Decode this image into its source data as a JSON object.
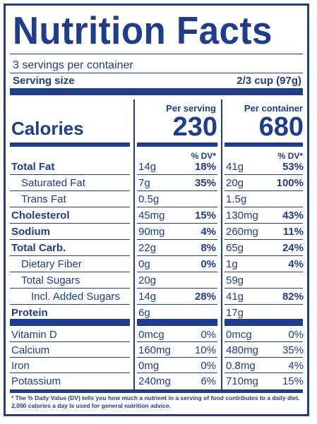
{
  "title": "Nutrition Facts",
  "servings": "3 servings per container",
  "serving_size_label": "Serving size",
  "serving_size_value": "2/3 cup (97g)",
  "per_serving_label": "Per serving",
  "per_container_label": "Per container",
  "calories_label": "Calories",
  "calories_per_serving": "230",
  "calories_per_container": "680",
  "dv_header": "% DV*",
  "rows": [
    {
      "label": "Total Fat",
      "bold": true,
      "indent": 0,
      "s_amt": "14g",
      "s_dv": "18%",
      "c_amt": "41g",
      "c_dv": "53%"
    },
    {
      "label": "Saturated Fat",
      "bold": false,
      "indent": 1,
      "s_amt": "7g",
      "s_dv": "35%",
      "c_amt": "20g",
      "c_dv": "100%"
    },
    {
      "label": "Trans Fat",
      "bold": false,
      "indent": 1,
      "s_amt": "0.5g",
      "s_dv": "",
      "c_amt": "1.5g",
      "c_dv": ""
    },
    {
      "label": "Cholesterol",
      "bold": true,
      "indent": 0,
      "s_amt": "45mg",
      "s_dv": "15%",
      "c_amt": "130mg",
      "c_dv": "43%"
    },
    {
      "label": "Sodium",
      "bold": true,
      "indent": 0,
      "s_amt": "90mg",
      "s_dv": "4%",
      "c_amt": "260mg",
      "c_dv": "11%"
    },
    {
      "label": "Total Carb.",
      "bold": true,
      "indent": 0,
      "s_amt": "22g",
      "s_dv": "8%",
      "c_amt": "65g",
      "c_dv": "24%"
    },
    {
      "label": "Dietary Fiber",
      "bold": false,
      "indent": 1,
      "s_amt": "0g",
      "s_dv": "0%",
      "c_amt": "1g",
      "c_dv": "4%"
    },
    {
      "label": "Total Sugars",
      "bold": false,
      "indent": 1,
      "s_amt": "20g",
      "s_dv": "",
      "c_amt": "59g",
      "c_dv": ""
    },
    {
      "label": "Incl. Added Sugars",
      "bold": false,
      "indent": 2,
      "s_amt": "14g",
      "s_dv": "28%",
      "c_amt": "41g",
      "c_dv": "82%"
    },
    {
      "label": "Protein",
      "bold": true,
      "indent": 0,
      "s_amt": "6g",
      "s_dv": "",
      "c_amt": "17g",
      "c_dv": ""
    }
  ],
  "vitamins": [
    {
      "label": "Vitamin D",
      "s_amt": "0mcg",
      "s_dv": "0%",
      "c_amt": "0mcg",
      "c_dv": "0%"
    },
    {
      "label": "Calcium",
      "s_amt": "160mg",
      "s_dv": "10%",
      "c_amt": "480mg",
      "c_dv": "35%"
    },
    {
      "label": "Iron",
      "s_amt": "0mg",
      "s_dv": "0%",
      "c_amt": "0.8mg",
      "c_dv": "4%"
    },
    {
      "label": "Potassium",
      "s_amt": "240mg",
      "s_dv": "6%",
      "c_amt": "710mg",
      "c_dv": "15%"
    }
  ],
  "footnote": "* The % Daily Value (DV) tells you how much a nutrient in a serving of food contributes to a daily diet. 2,000 calories a day is used for general nutrition advice."
}
